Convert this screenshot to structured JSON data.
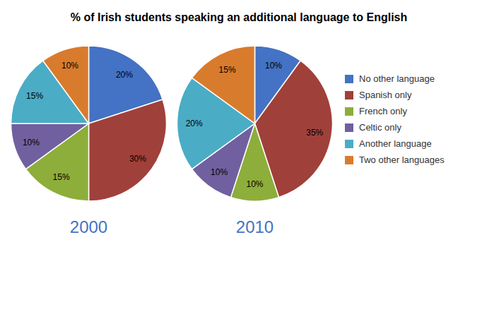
{
  "chart_data": {
    "type": "pie",
    "title": "% of Irish students speaking an additional language to English",
    "categories": [
      "No other language",
      "Spanish only",
      "French only",
      "Celtic only",
      "Another language",
      "Two other languages"
    ],
    "colors": [
      "#4472C4",
      "#A0403A",
      "#8DAE3A",
      "#7060A0",
      "#4BACC6",
      "#D97B2C"
    ],
    "series": [
      {
        "name": "2000",
        "values": [
          20,
          30,
          15,
          10,
          15,
          10
        ],
        "value_labels": [
          "20%",
          "30%",
          "15%",
          "10%",
          "15%",
          "10%"
        ]
      },
      {
        "name": "2010",
        "values": [
          10,
          35,
          10,
          10,
          20,
          15
        ],
        "value_labels": [
          "10%",
          "35%",
          "10%",
          "10%",
          "20%",
          "15%"
        ]
      }
    ],
    "data_labels": true,
    "legend": "right"
  }
}
